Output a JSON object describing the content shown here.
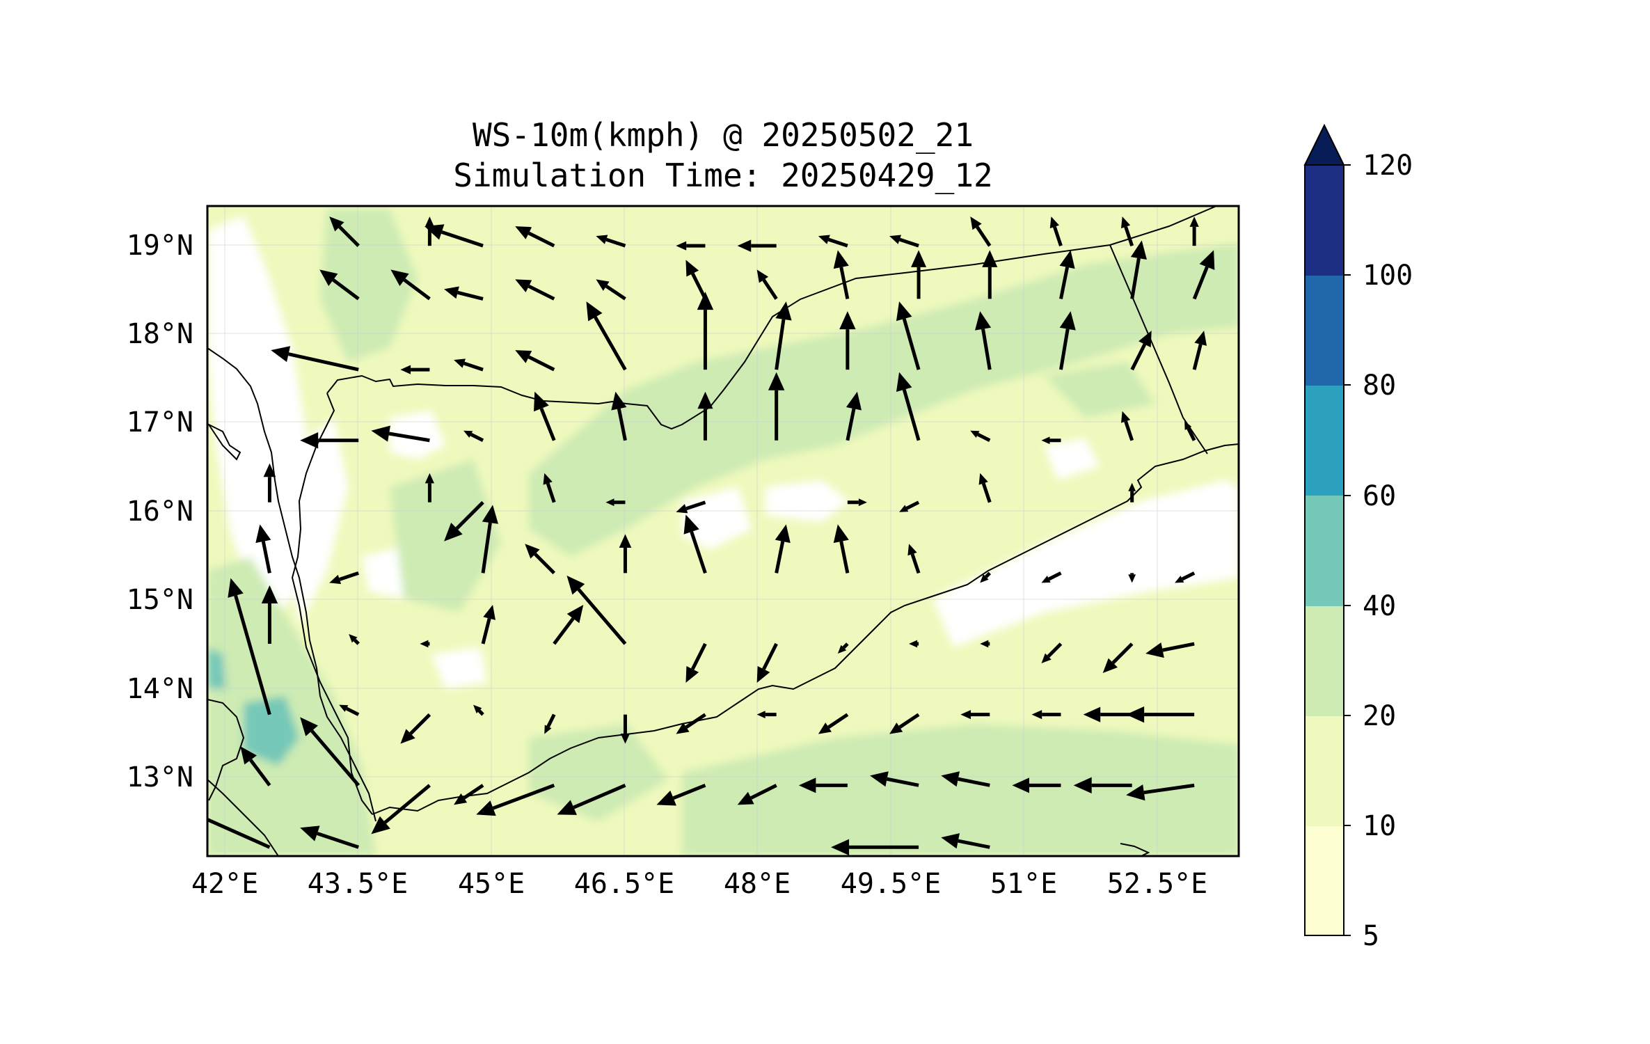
{
  "title": {
    "line1": "WS-10m(kmph) @ 20250502_21",
    "line2": "Simulation Time: 20250429_12"
  },
  "map": {
    "lon_ticks": [
      "42°E",
      "43.5°E",
      "45°E",
      "46.5°E",
      "48°E",
      "49.5°E",
      "51°E",
      "52.5°E"
    ],
    "lat_ticks": [
      "19°N",
      "18°N",
      "17°N",
      "16°N",
      "15°N",
      "14°N",
      "13°N"
    ],
    "lon_range": [
      41.9,
      53.5
    ],
    "lat_range": [
      12.1,
      19.45
    ]
  },
  "colorbar": {
    "ticks": [
      "5",
      "10",
      "20",
      "40",
      "60",
      "80",
      "100",
      "120"
    ],
    "colors": [
      "#fdfed1",
      "#eff9bd",
      "#cdebb3",
      "#76c8b8",
      "#2ca2c0",
      "#2167ac",
      "#1d2f83",
      "#081d58"
    ],
    "extend": "max"
  },
  "wind_vectors": [
    {
      "lon": 43.6,
      "lat": 19.0,
      "u": -3,
      "v": 3
    },
    {
      "lon": 44.4,
      "lat": 19.0,
      "u": 0,
      "v": 3
    },
    {
      "lon": 45.0,
      "lat": 19.0,
      "u": -6,
      "v": 2
    },
    {
      "lon": 45.8,
      "lat": 19.0,
      "u": -4,
      "v": 2
    },
    {
      "lon": 46.6,
      "lat": 19.0,
      "u": -3,
      "v": 1
    },
    {
      "lon": 47.5,
      "lat": 19.0,
      "u": -3,
      "v": 0
    },
    {
      "lon": 48.3,
      "lat": 19.0,
      "u": -4,
      "v": 0
    },
    {
      "lon": 49.1,
      "lat": 19.0,
      "u": -3,
      "v": 1
    },
    {
      "lon": 49.9,
      "lat": 19.0,
      "u": -3,
      "v": 1
    },
    {
      "lon": 50.7,
      "lat": 19.0,
      "u": -2,
      "v": 3
    },
    {
      "lon": 51.5,
      "lat": 19.0,
      "u": -1,
      "v": 3
    },
    {
      "lon": 52.3,
      "lat": 19.0,
      "u": -1,
      "v": 3
    },
    {
      "lon": 53.0,
      "lat": 19.0,
      "u": 0,
      "v": 3
    },
    {
      "lon": 43.6,
      "lat": 18.4,
      "u": -4,
      "v": 3
    },
    {
      "lon": 44.4,
      "lat": 18.4,
      "u": -4,
      "v": 3
    },
    {
      "lon": 45.0,
      "lat": 18.4,
      "u": -4,
      "v": 1
    },
    {
      "lon": 45.8,
      "lat": 18.4,
      "u": -4,
      "v": 2
    },
    {
      "lon": 46.6,
      "lat": 18.4,
      "u": -3,
      "v": 2
    },
    {
      "lon": 47.5,
      "lat": 18.4,
      "u": -2,
      "v": 4
    },
    {
      "lon": 48.3,
      "lat": 18.4,
      "u": -2,
      "v": 3
    },
    {
      "lon": 49.1,
      "lat": 18.4,
      "u": -1,
      "v": 5
    },
    {
      "lon": 49.9,
      "lat": 18.4,
      "u": 0,
      "v": 5
    },
    {
      "lon": 50.7,
      "lat": 18.4,
      "u": 0,
      "v": 5
    },
    {
      "lon": 51.5,
      "lat": 18.4,
      "u": 1,
      "v": 5
    },
    {
      "lon": 52.3,
      "lat": 18.4,
      "u": 1,
      "v": 6
    },
    {
      "lon": 53.0,
      "lat": 18.4,
      "u": 2,
      "v": 5
    },
    {
      "lon": 43.6,
      "lat": 17.6,
      "u": -9,
      "v": 2
    },
    {
      "lon": 44.4,
      "lat": 17.6,
      "u": -3,
      "v": 0
    },
    {
      "lon": 45.0,
      "lat": 17.6,
      "u": -3,
      "v": 1
    },
    {
      "lon": 45.8,
      "lat": 17.6,
      "u": -4,
      "v": 2
    },
    {
      "lon": 46.6,
      "lat": 17.6,
      "u": -4,
      "v": 7
    },
    {
      "lon": 47.5,
      "lat": 17.6,
      "u": 0,
      "v": 8
    },
    {
      "lon": 48.3,
      "lat": 17.6,
      "u": 1,
      "v": 7
    },
    {
      "lon": 49.1,
      "lat": 17.6,
      "u": 0,
      "v": 6
    },
    {
      "lon": 49.9,
      "lat": 17.6,
      "u": -2,
      "v": 7
    },
    {
      "lon": 50.7,
      "lat": 17.6,
      "u": -1,
      "v": 6
    },
    {
      "lon": 51.5,
      "lat": 17.6,
      "u": 1,
      "v": 6
    },
    {
      "lon": 52.3,
      "lat": 17.6,
      "u": 2,
      "v": 4
    },
    {
      "lon": 53.0,
      "lat": 17.6,
      "u": 1,
      "v": 4
    },
    {
      "lon": 43.6,
      "lat": 16.8,
      "u": -6,
      "v": 0
    },
    {
      "lon": 44.4,
      "lat": 16.8,
      "u": -6,
      "v": 1
    },
    {
      "lon": 45.0,
      "lat": 16.8,
      "u": -2,
      "v": 1
    },
    {
      "lon": 45.8,
      "lat": 16.8,
      "u": -2,
      "v": 5
    },
    {
      "lon": 46.6,
      "lat": 16.8,
      "u": -1,
      "v": 5
    },
    {
      "lon": 47.5,
      "lat": 16.8,
      "u": 0,
      "v": 5
    },
    {
      "lon": 48.3,
      "lat": 16.8,
      "u": 0,
      "v": 7
    },
    {
      "lon": 49.1,
      "lat": 16.8,
      "u": 1,
      "v": 5
    },
    {
      "lon": 49.9,
      "lat": 16.8,
      "u": -2,
      "v": 7
    },
    {
      "lon": 50.7,
      "lat": 16.8,
      "u": -2,
      "v": 1
    },
    {
      "lon": 51.5,
      "lat": 16.8,
      "u": -2,
      "v": 0
    },
    {
      "lon": 52.3,
      "lat": 16.8,
      "u": -1,
      "v": 3
    },
    {
      "lon": 53.0,
      "lat": 16.8,
      "u": -1,
      "v": 2
    },
    {
      "lon": 42.6,
      "lat": 16.1,
      "u": 0,
      "v": 4
    },
    {
      "lon": 44.4,
      "lat": 16.1,
      "u": 0,
      "v": 3
    },
    {
      "lon": 45.0,
      "lat": 16.1,
      "u": -4,
      "v": -4
    },
    {
      "lon": 45.8,
      "lat": 16.1,
      "u": -1,
      "v": 3
    },
    {
      "lon": 46.6,
      "lat": 16.1,
      "u": -2,
      "v": 0
    },
    {
      "lon": 47.5,
      "lat": 16.1,
      "u": -3,
      "v": -1
    },
    {
      "lon": 49.1,
      "lat": 16.1,
      "u": 2,
      "v": 0
    },
    {
      "lon": 49.9,
      "lat": 16.1,
      "u": -2,
      "v": -1
    },
    {
      "lon": 50.7,
      "lat": 16.1,
      "u": -1,
      "v": 3
    },
    {
      "lon": 52.3,
      "lat": 16.1,
      "u": 0,
      "v": 2
    },
    {
      "lon": 42.6,
      "lat": 15.3,
      "u": -1,
      "v": 5
    },
    {
      "lon": 43.6,
      "lat": 15.3,
      "u": -3,
      "v": -1
    },
    {
      "lon": 45.0,
      "lat": 15.3,
      "u": 1,
      "v": 7
    },
    {
      "lon": 45.8,
      "lat": 15.3,
      "u": -3,
      "v": 3
    },
    {
      "lon": 46.6,
      "lat": 15.3,
      "u": 0,
      "v": 4
    },
    {
      "lon": 47.5,
      "lat": 15.3,
      "u": -2,
      "v": 6
    },
    {
      "lon": 48.3,
      "lat": 15.3,
      "u": 1,
      "v": 5
    },
    {
      "lon": 49.1,
      "lat": 15.3,
      "u": -1,
      "v": 5
    },
    {
      "lon": 49.9,
      "lat": 15.3,
      "u": -1,
      "v": 3
    },
    {
      "lon": 50.7,
      "lat": 15.3,
      "u": -1,
      "v": -1
    },
    {
      "lon": 51.5,
      "lat": 15.3,
      "u": -2,
      "v": -1
    },
    {
      "lon": 52.3,
      "lat": 15.3,
      "u": 0,
      "v": -1
    },
    {
      "lon": 53.0,
      "lat": 15.3,
      "u": -2,
      "v": -1
    },
    {
      "lon": 42.6,
      "lat": 14.5,
      "u": 0,
      "v": 6
    },
    {
      "lon": 43.6,
      "lat": 14.5,
      "u": -1,
      "v": 1
    },
    {
      "lon": 44.4,
      "lat": 14.5,
      "u": -1,
      "v": 0
    },
    {
      "lon": 45.0,
      "lat": 14.5,
      "u": 1,
      "v": 4
    },
    {
      "lon": 45.8,
      "lat": 14.5,
      "u": 3,
      "v": 4
    },
    {
      "lon": 46.6,
      "lat": 14.5,
      "u": -6,
      "v": 7
    },
    {
      "lon": 47.5,
      "lat": 14.5,
      "u": -2,
      "v": -4
    },
    {
      "lon": 48.3,
      "lat": 14.5,
      "u": -2,
      "v": -4
    },
    {
      "lon": 49.1,
      "lat": 14.5,
      "u": -1,
      "v": -1
    },
    {
      "lon": 49.9,
      "lat": 14.5,
      "u": -1,
      "v": 0
    },
    {
      "lon": 50.7,
      "lat": 14.5,
      "u": -1,
      "v": 0
    },
    {
      "lon": 51.5,
      "lat": 14.5,
      "u": -2,
      "v": -2
    },
    {
      "lon": 52.3,
      "lat": 14.5,
      "u": -3,
      "v": -3
    },
    {
      "lon": 53.0,
      "lat": 14.5,
      "u": -5,
      "v": -1
    },
    {
      "lon": 42.6,
      "lat": 13.7,
      "u": -4,
      "v": 14
    },
    {
      "lon": 43.6,
      "lat": 13.7,
      "u": -2,
      "v": 1
    },
    {
      "lon": 44.4,
      "lat": 13.7,
      "u": -3,
      "v": -3
    },
    {
      "lon": 45.0,
      "lat": 13.7,
      "u": -1,
      "v": 1
    },
    {
      "lon": 45.8,
      "lat": 13.7,
      "u": -1,
      "v": -2
    },
    {
      "lon": 46.6,
      "lat": 13.7,
      "u": 0,
      "v": -3
    },
    {
      "lon": 47.5,
      "lat": 13.7,
      "u": -3,
      "v": -2
    },
    {
      "lon": 48.3,
      "lat": 13.7,
      "u": -2,
      "v": 0
    },
    {
      "lon": 49.1,
      "lat": 13.7,
      "u": -3,
      "v": -2
    },
    {
      "lon": 49.9,
      "lat": 13.7,
      "u": -3,
      "v": -2
    },
    {
      "lon": 50.7,
      "lat": 13.7,
      "u": -3,
      "v": 0
    },
    {
      "lon": 51.5,
      "lat": 13.7,
      "u": -3,
      "v": 0
    },
    {
      "lon": 52.3,
      "lat": 13.7,
      "u": -5,
      "v": 0
    },
    {
      "lon": 53.0,
      "lat": 13.7,
      "u": -7,
      "v": 0
    },
    {
      "lon": 42.6,
      "lat": 12.9,
      "u": -3,
      "v": 4
    },
    {
      "lon": 43.6,
      "lat": 12.9,
      "u": -6,
      "v": 7
    },
    {
      "lon": 44.4,
      "lat": 12.9,
      "u": -6,
      "v": -5
    },
    {
      "lon": 45.0,
      "lat": 12.9,
      "u": -3,
      "v": -2
    },
    {
      "lon": 45.8,
      "lat": 12.9,
      "u": -8,
      "v": -3
    },
    {
      "lon": 46.6,
      "lat": 12.9,
      "u": -7,
      "v": -3
    },
    {
      "lon": 47.5,
      "lat": 12.9,
      "u": -5,
      "v": -2
    },
    {
      "lon": 48.3,
      "lat": 12.9,
      "u": -4,
      "v": -2
    },
    {
      "lon": 49.1,
      "lat": 12.9,
      "u": -5,
      "v": 0
    },
    {
      "lon": 49.9,
      "lat": 12.9,
      "u": -5,
      "v": 1
    },
    {
      "lon": 50.7,
      "lat": 12.9,
      "u": -5,
      "v": 1
    },
    {
      "lon": 51.5,
      "lat": 12.9,
      "u": -5,
      "v": 0
    },
    {
      "lon": 52.3,
      "lat": 12.9,
      "u": -6,
      "v": 0
    },
    {
      "lon": 53.0,
      "lat": 12.9,
      "u": -7,
      "v": -1
    },
    {
      "lon": 42.6,
      "lat": 12.2,
      "u": -9,
      "v": 4
    },
    {
      "lon": 43.6,
      "lat": 12.2,
      "u": -6,
      "v": 2
    },
    {
      "lon": 49.9,
      "lat": 12.2,
      "u": -9,
      "v": 0
    },
    {
      "lon": 50.7,
      "lat": 12.2,
      "u": -5,
      "v": 1
    }
  ]
}
